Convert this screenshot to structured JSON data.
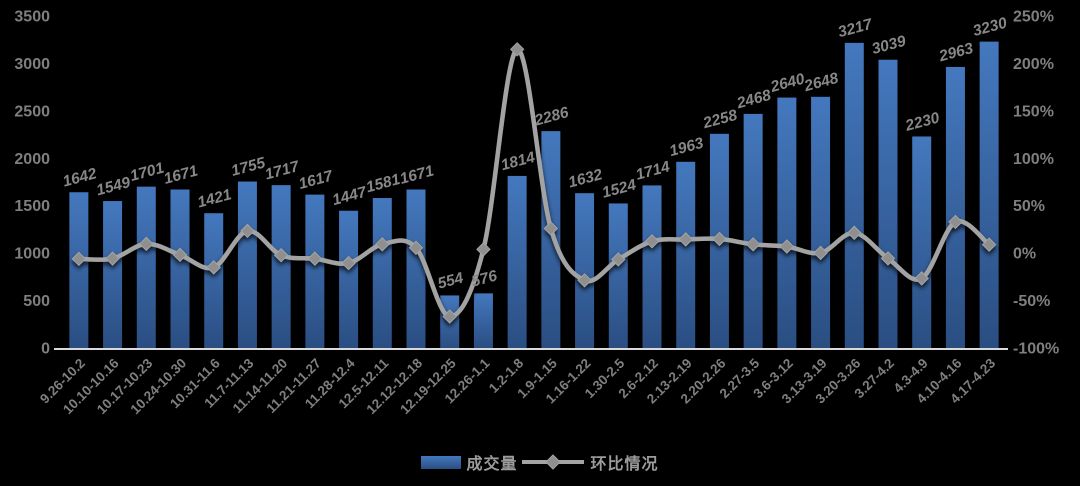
{
  "chart_data": {
    "type": "combo",
    "title": "",
    "categories": [
      "9.26-10.2",
      "10.10-10.16",
      "10.17-10.23",
      "10.24-10.30",
      "10.31-11.6",
      "11.7-11.13",
      "11.14-11.20",
      "11.21-11.27",
      "11.28-12.4",
      "12.5-12.11",
      "12.12-12.18",
      "12.19-12.25",
      "12.26-1.1",
      "1.2-1.8",
      "1.9-1.15",
      "1.16-1.22",
      "1.30-2.5",
      "2.6-2.12",
      "2.13-2.19",
      "2.20-2.26",
      "2.27-3.5",
      "3.6-3.12",
      "3.13-3.19",
      "3.20-3.26",
      "3.27-4.2",
      "4.3-4.9",
      "4.10-4.16",
      "4.17-4.23"
    ],
    "series": [
      {
        "name": "成交量",
        "type": "bar",
        "axis": "left",
        "values": [
          1642,
          1549,
          1701,
          1671,
          1421,
          1755,
          1717,
          1617,
          1447,
          1581,
          1671,
          554,
          576,
          1814,
          2286,
          1632,
          1524,
          1714,
          1963,
          2258,
          2468,
          2640,
          2648,
          3217,
          3039,
          2230,
          2963,
          3230
        ]
      },
      {
        "name": "环比情况",
        "type": "line",
        "axis": "right",
        "values_pct": [
          -6.0,
          -5.7,
          9.8,
          -1.8,
          -15.0,
          23.5,
          -2.2,
          -5.8,
          -10.5,
          9.3,
          5.7,
          -66.8,
          4.0,
          214.9,
          26.0,
          -28.6,
          -6.6,
          12.5,
          14.5,
          15.0,
          9.3,
          7.0,
          0.3,
          21.5,
          -5.5,
          -26.6,
          32.9,
          9.0
        ]
      }
    ],
    "left_axis": {
      "min": 0,
      "max": 3500,
      "ticks": [
        3500,
        3000,
        2500,
        2000,
        1500,
        1000,
        500,
        0
      ]
    },
    "right_axis": {
      "min_pct": -100,
      "max_pct": 250,
      "ticks_pct": [
        250,
        200,
        150,
        100,
        50,
        0,
        -50,
        -100
      ],
      "suffix": "%"
    },
    "grid": "off",
    "legend_position": "bottom-center",
    "colors": {
      "background": "#000000",
      "bar_top": "#4478be",
      "bar_bottom": "#2a4e82",
      "line": "#a3a3a3",
      "marker_fill": "#8f8f8f",
      "axis_text": "#7f7f7f",
      "data_label": "#878787",
      "baseline": "#d9d9d9",
      "legend_text": "#9c9c9c"
    }
  },
  "legend": {
    "bar_label": "成交量",
    "line_label": "环比情况"
  }
}
